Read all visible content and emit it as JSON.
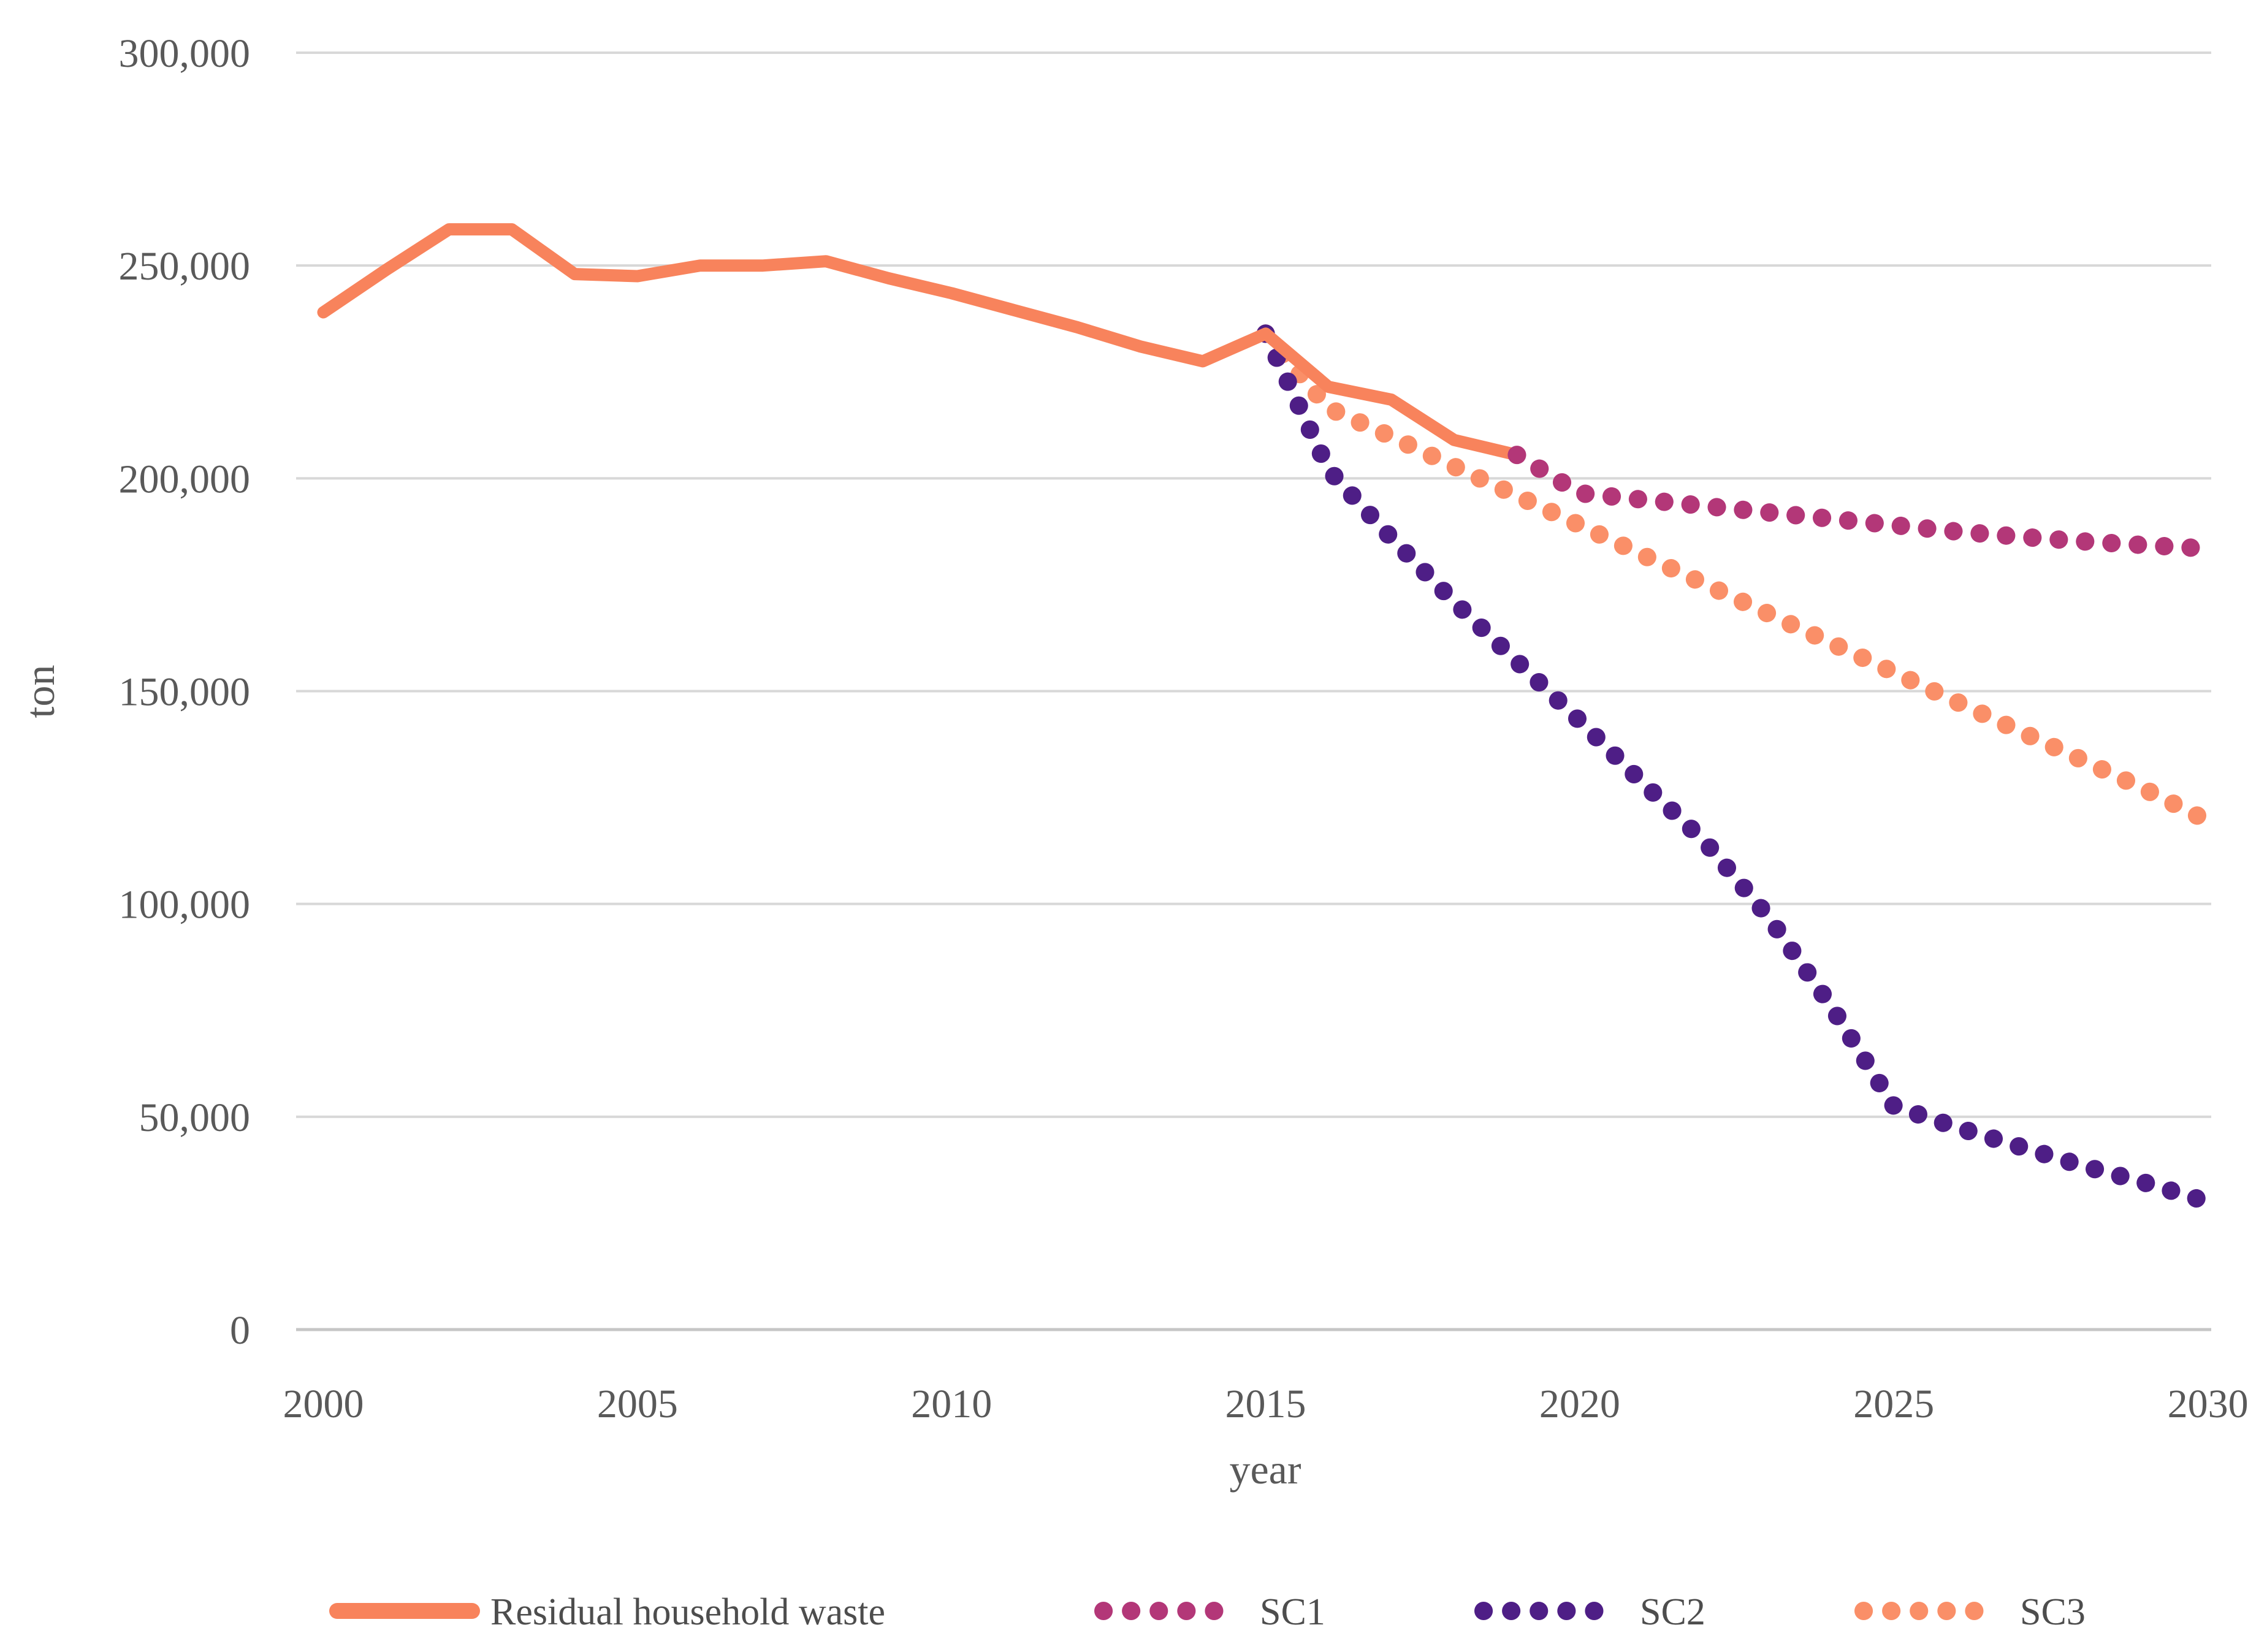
{
  "figure": {
    "background": "#FFFFFF"
  },
  "chart_data": {
    "type": "line",
    "title": "",
    "xlabel": "year",
    "ylabel": "ton",
    "xlim": [
      2000,
      2030
    ],
    "ylim": [
      0,
      300000
    ],
    "x_ticks": [
      2000,
      2005,
      2010,
      2015,
      2020,
      2025,
      2030
    ],
    "y_ticks": [
      {
        "value": 0,
        "label": "0"
      },
      {
        "value": 50000,
        "label": "50,000"
      },
      {
        "value": 100000,
        "label": "100,000"
      },
      {
        "value": 150000,
        "label": "150,000"
      },
      {
        "value": 200000,
        "label": "200,000"
      },
      {
        "value": 250000,
        "label": "250,000"
      },
      {
        "value": 300000,
        "label": "300,000"
      }
    ],
    "grid": "horizontal-only",
    "gridline_color": "#D8D8D8",
    "axis_line_color": "#C6C6C6",
    "text_color": "#595959",
    "legend_position": "bottom",
    "series": [
      {
        "name": "Residual household waste",
        "style": "solid",
        "color": "#F8835C",
        "x": [
          2000,
          2001,
          2002,
          2003,
          2004,
          2005,
          2006,
          2007,
          2008,
          2009,
          2010,
          2011,
          2012,
          2013,
          2014,
          2015,
          2016,
          2017,
          2018,
          2019
        ],
        "values": [
          239000,
          249000,
          258500,
          258500,
          248000,
          247500,
          250000,
          250000,
          251000,
          247000,
          243500,
          239500,
          235500,
          231000,
          227500,
          234000,
          221500,
          218500,
          209000,
          205500
        ]
      },
      {
        "name": "SC1",
        "style": "dotted",
        "color": "#B33778",
        "x": [
          2019,
          2020,
          2021,
          2022,
          2023,
          2024,
          2025,
          2026,
          2027,
          2028,
          2029,
          2030
        ],
        "values": [
          205500,
          196500,
          195000,
          193500,
          192000,
          190500,
          189000,
          187500,
          186300,
          185200,
          184300,
          183500
        ]
      },
      {
        "name": "SC2",
        "style": "dotted",
        "color": "#4E1E86",
        "x": [
          2015,
          2016,
          2017,
          2018,
          2019,
          2020,
          2021,
          2022,
          2023,
          2024,
          2025,
          2026,
          2027,
          2028,
          2029,
          2030
        ],
        "values": [
          234000,
          202000,
          186000,
          171000,
          157000,
          143000,
          128500,
          114500,
          97000,
          76000,
          52500,
          47500,
          43000,
          38500,
          34500,
          30000
        ]
      },
      {
        "name": "SC3",
        "style": "dotted",
        "color": "#FA8F68",
        "x": [
          2015,
          2016,
          2017,
          2018,
          2019,
          2020,
          2021,
          2022,
          2023,
          2024,
          2025,
          2026,
          2027,
          2028,
          2029,
          2030
        ],
        "values": [
          234000,
          216500,
          209800,
          202800,
          195900,
          189000,
          182000,
          175100,
          168200,
          161300,
          154400,
          147500,
          140600,
          133800,
          126900,
          119500
        ]
      }
    ]
  }
}
